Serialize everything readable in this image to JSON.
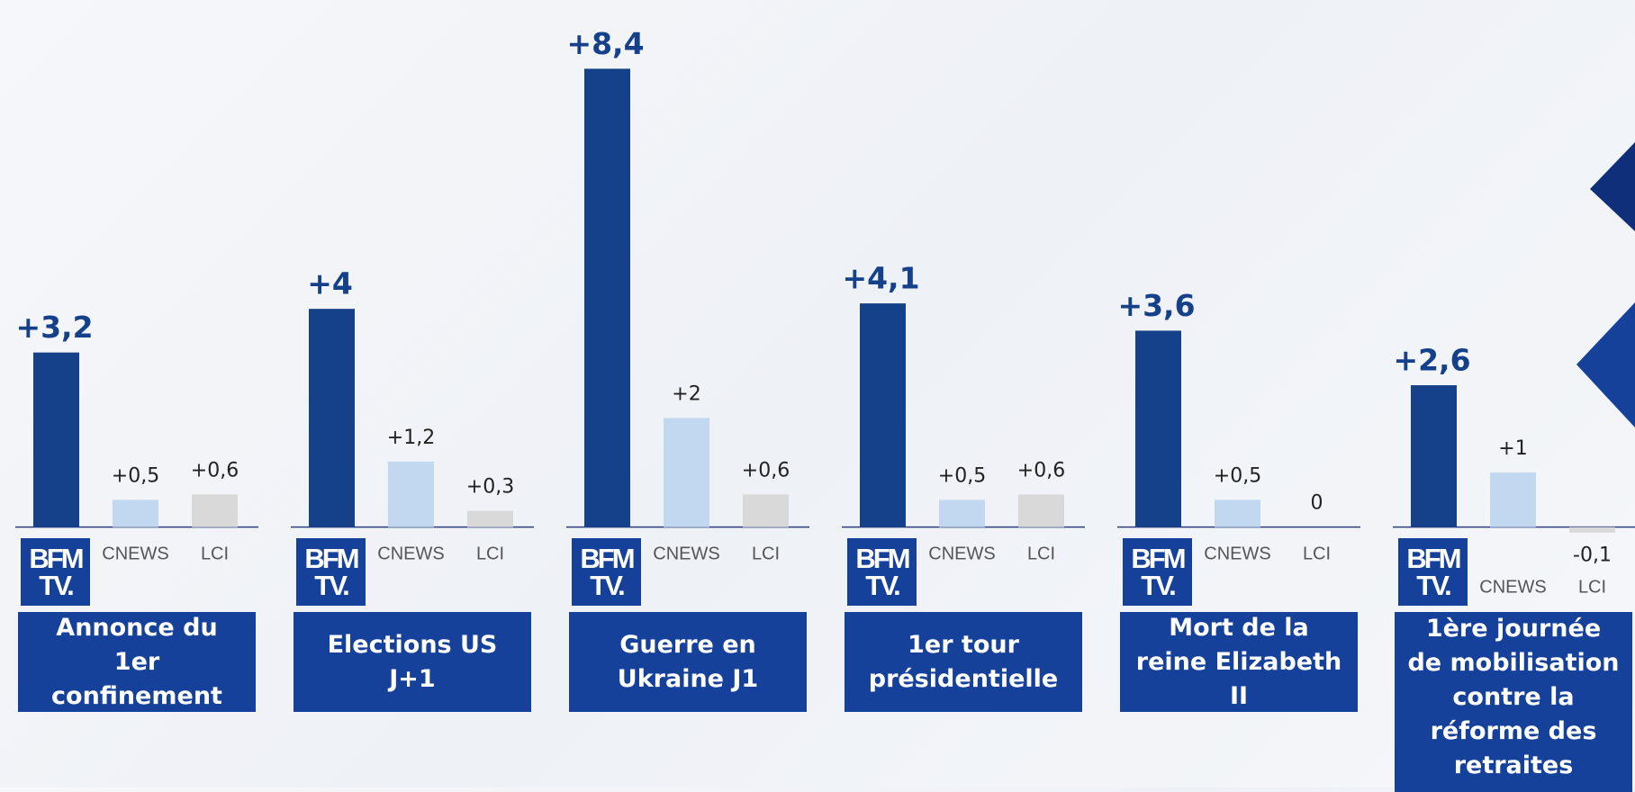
{
  "chart_data": {
    "type": "bar",
    "categories": [
      "Annonce du 1er confinement",
      "Elections US J+1",
      "Guerre en Ukraine J1",
      "1er tour présidentielle",
      "Mort de la reine Elizabeth II",
      "1ère journée de mobilisation contre la réforme des retraites"
    ],
    "series": [
      {
        "name": "BFM TV.",
        "color": "#15418a",
        "values": [
          3.2,
          4,
          8.4,
          4.1,
          3.6,
          2.6
        ],
        "value_labels": [
          "+3,2",
          "+4",
          "+8,4",
          "+4,1",
          "+3,6",
          "+2,6"
        ]
      },
      {
        "name": "CNEWS",
        "color": "#c2d8f0",
        "values": [
          0.5,
          1.2,
          2,
          0.5,
          0.5,
          1
        ],
        "value_labels": [
          "+0,5",
          "+1,2",
          "+2",
          "+0,5",
          "+0,5",
          "+1"
        ]
      },
      {
        "name": "LCI",
        "color": "#d9d9d9",
        "values": [
          0.6,
          0.3,
          0.6,
          0.6,
          0,
          -0.1
        ],
        "value_labels": [
          "+0,6",
          "+0,3",
          "+0,6",
          "+0,6",
          "0",
          "-0,1"
        ]
      }
    ],
    "ylim": [
      -0.5,
      9
    ]
  }
}
